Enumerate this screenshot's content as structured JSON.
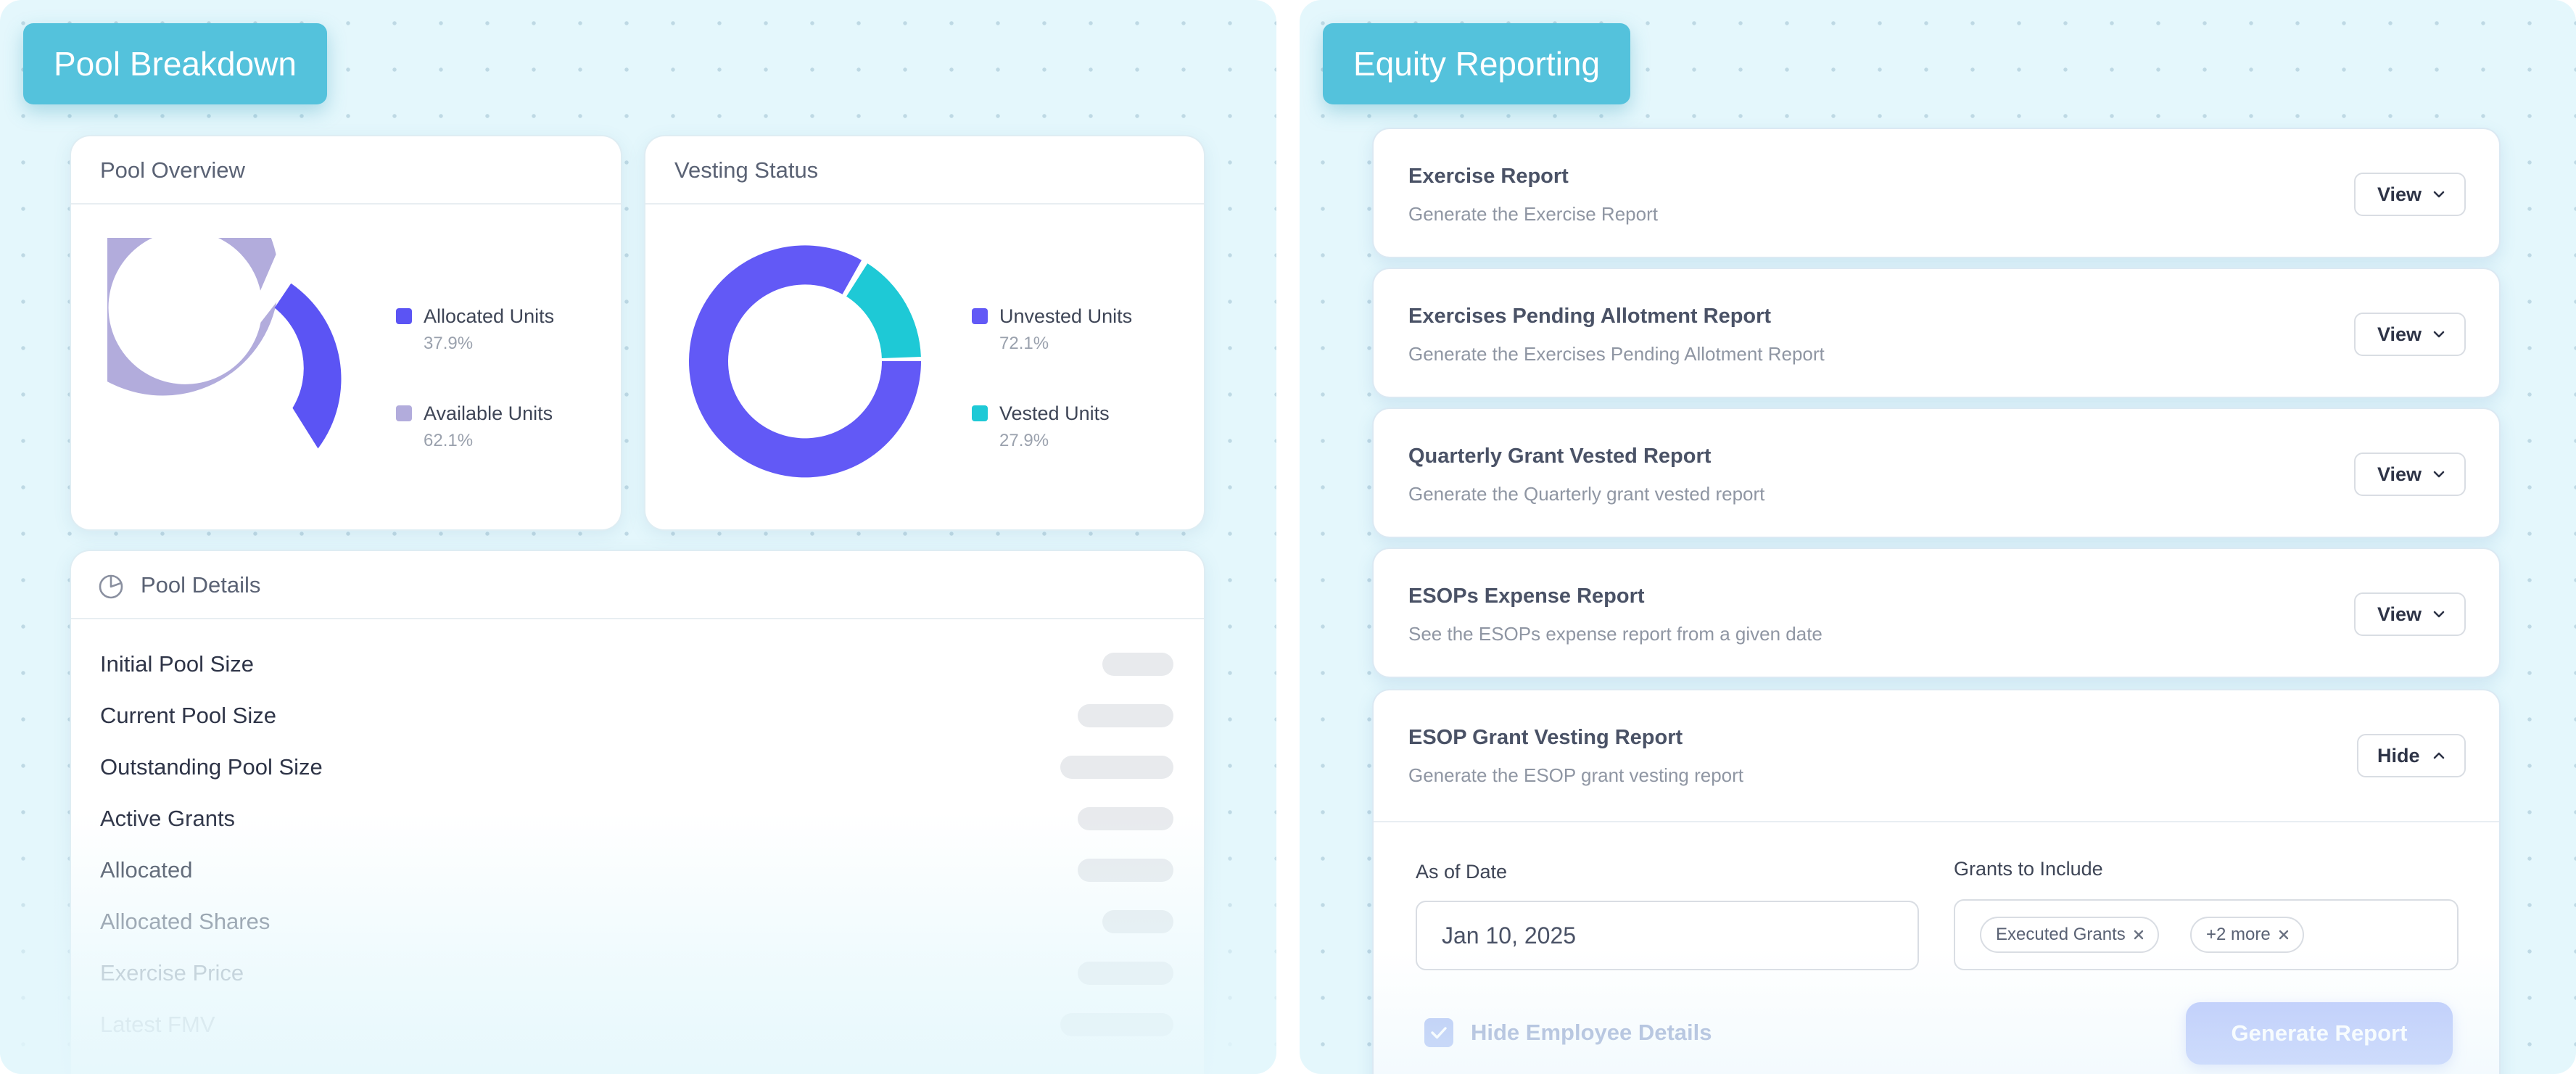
{
  "left_section": {
    "tag": "Pool Breakdown",
    "pool_overview": {
      "title": "Pool Overview",
      "legend": [
        {
          "label": "Allocated Units",
          "value": "37.9%",
          "color": "#5b54f4"
        },
        {
          "label": "Available Units",
          "value": "62.1%",
          "color": "#b2acdc"
        }
      ]
    },
    "vesting_status": {
      "title": "Vesting Status",
      "legend": [
        {
          "label": "Unvested Units",
          "value": "72.1%",
          "color": "#6259f6"
        },
        {
          "label": "Vested Units",
          "value": "27.9%",
          "color": "#1ec9d6"
        }
      ]
    },
    "pool_details": {
      "title": "Pool Details",
      "icon": "pie-chart-icon",
      "rows": [
        {
          "label": "Initial Pool Size"
        },
        {
          "label": "Current Pool Size"
        },
        {
          "label": "Outstanding Pool Size"
        },
        {
          "label": "Active Grants"
        },
        {
          "label": "Allocated"
        },
        {
          "label": "Allocated Shares"
        },
        {
          "label": "Exercise Price"
        },
        {
          "label": "Latest FMV"
        }
      ]
    }
  },
  "right_section": {
    "tag": "Equity Reporting",
    "reports": [
      {
        "title": "Exercise Report",
        "description": "Generate the Exercise Report",
        "button": "View"
      },
      {
        "title": "Exercises Pending Allotment Report",
        "description": "Generate the Exercises Pending Allotment Report",
        "button": "View"
      },
      {
        "title": "Quarterly Grant Vested Report",
        "description": "Generate the Quarterly grant vested report",
        "button": "View"
      },
      {
        "title": "ESOPs Expense Report",
        "description": "See the ESOPs expense report from a given date",
        "button": "View"
      }
    ],
    "esop_report": {
      "title": "ESOP Grant Vesting Report",
      "description": "Generate the ESOP grant vesting report",
      "button": "Hide",
      "as_of_date_label": "As of Date",
      "as_of_date_value": "Jan 10, 2025",
      "grants_label": "Grants to Include",
      "grants_chips": [
        "Executed Grants",
        "+2 more"
      ],
      "hide_employee_label": "Hide Employee Details",
      "hide_employee_checked": true,
      "generate_button": "Generate Report"
    }
  },
  "colors": {
    "panel_bg": "#e4f7fc",
    "tag_bg": "#54c2dc",
    "primary": "#5b54f4",
    "accent_teal": "#1ec9d6"
  }
}
